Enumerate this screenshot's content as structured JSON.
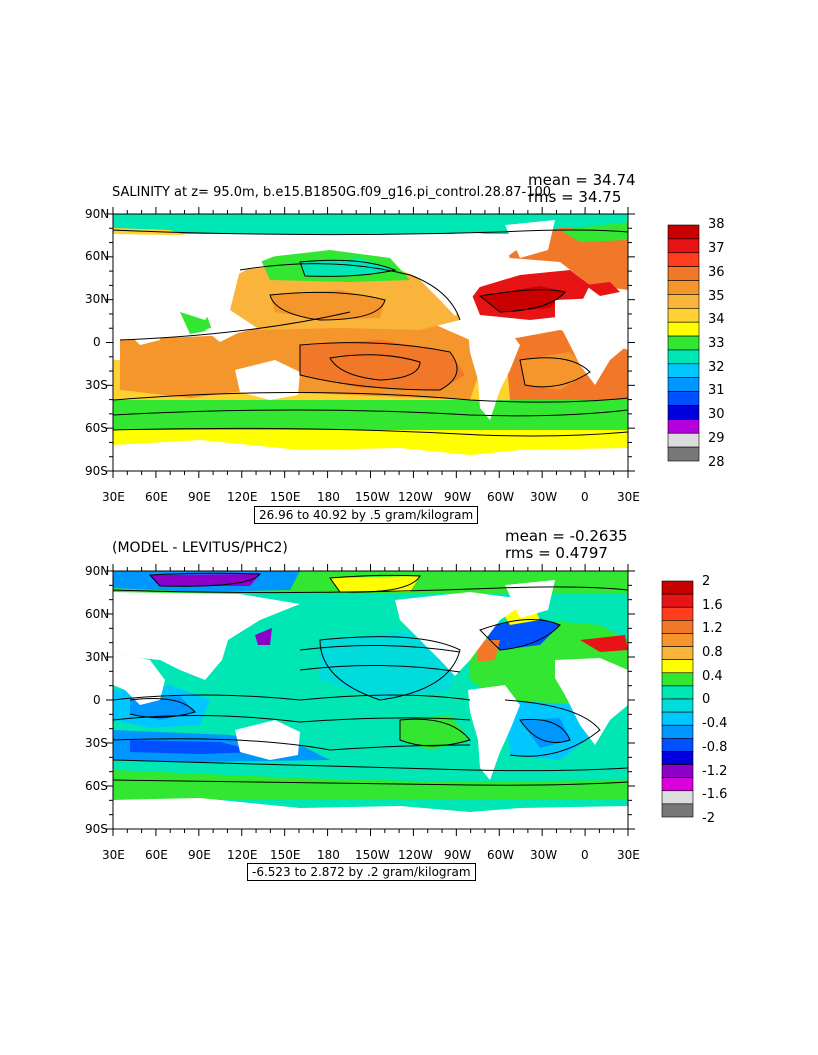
{
  "panels": [
    {
      "title": "SALINITY at z=  95.0m, b.e15.B1850G.f09_g16.pi_control.28.87-100",
      "stats_mean": "mean = 34.74",
      "stats_rms": "rms = 34.75",
      "range_label": "26.96 to 40.92 by .5 gram/kilogram",
      "lat_labels": [
        "90N",
        "60N",
        "30N",
        "0",
        "30S",
        "60S",
        "90S"
      ],
      "lon_labels": [
        "30E",
        "60E",
        "90E",
        "120E",
        "150E",
        "180",
        "150W",
        "120W",
        "90W",
        "60W",
        "30W",
        "0",
        "30E"
      ],
      "colorbar": {
        "labels": [
          "38",
          "37",
          "36",
          "35",
          "34",
          "33",
          "32",
          "31",
          "30",
          "29",
          "28"
        ],
        "colors": [
          "#c80000",
          "#e61414",
          "#ff3c1e",
          "#f07828",
          "#f5962d",
          "#fab43c",
          "#ffd232",
          "#ffff00",
          "#32e632",
          "#00e6b4",
          "#00c8ff",
          "#0096ff",
          "#0050ff",
          "#0000dc",
          "#b400dc",
          "#dcdcdc",
          "#787878"
        ]
      }
    },
    {
      "title": "(MODEL - LEVITUS/PHC2)",
      "stats_mean": "mean = -0.2635",
      "stats_rms": "rms = 0.4797",
      "range_label": "-6.523 to 2.872 by .2 gram/kilogram",
      "lat_labels": [
        "90N",
        "60N",
        "30N",
        "0",
        "30S",
        "60S",
        "90S"
      ],
      "lon_labels": [
        "30E",
        "60E",
        "90E",
        "120E",
        "150E",
        "180",
        "150W",
        "120W",
        "90W",
        "60W",
        "30W",
        "0",
        "30E"
      ],
      "colorbar": {
        "labels": [
          "2",
          "1.6",
          "1.2",
          "0.8",
          "0.4",
          "0",
          "-0.4",
          "-0.8",
          "-1.2",
          "-1.6",
          "-2"
        ],
        "colors": [
          "#c80000",
          "#e61414",
          "#ff3c1e",
          "#f07828",
          "#f5962d",
          "#fab43c",
          "#ffff00",
          "#32e632",
          "#00e6b4",
          "#00dcdc",
          "#00c8ff",
          "#0096ff",
          "#0050ff",
          "#0000dc",
          "#8c00c8",
          "#dc00dc",
          "#dcdcdc",
          "#787878"
        ]
      }
    }
  ]
}
